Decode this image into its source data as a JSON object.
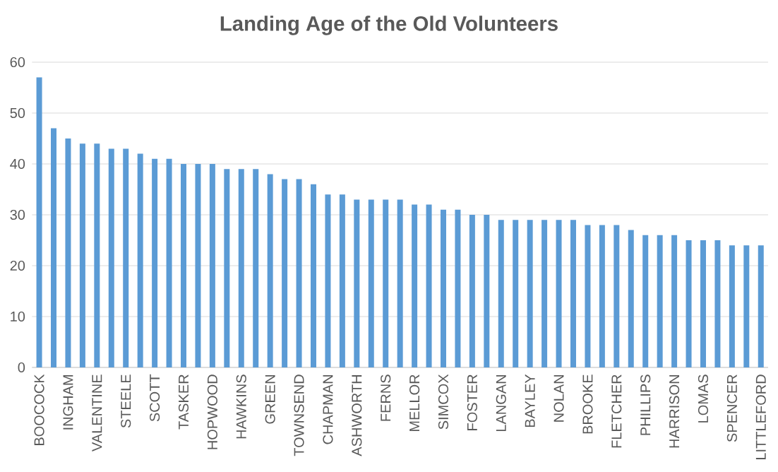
{
  "chart_data": {
    "type": "bar",
    "title": "Landing Age of the Old Volunteers",
    "categories": [
      "BOOCOCK",
      null,
      "INGHAM",
      null,
      "VALENTINE",
      null,
      "STEELE",
      null,
      "SCOTT",
      null,
      "TASKER",
      null,
      "HOPWOOD",
      null,
      "HAWKINS",
      null,
      "GREEN",
      null,
      "TOWNSEND",
      null,
      "CHAPMAN",
      null,
      "ASHWORTH",
      null,
      "FERNS",
      null,
      "MELLOR",
      null,
      "SIMCOX",
      null,
      "FOSTER",
      null,
      "LANGAN",
      null,
      "BAYLEY",
      null,
      "NOLAN",
      null,
      "BROOKE",
      null,
      "FLETCHER",
      null,
      "PHILLIPS",
      null,
      "HARRISON",
      null,
      "LOMAS",
      null,
      "SPENCER",
      null,
      "LITTLEFORD"
    ],
    "values": [
      57,
      47,
      45,
      44,
      44,
      43,
      43,
      42,
      41,
      41,
      40,
      40,
      40,
      39,
      39,
      39,
      38,
      37,
      37,
      36,
      34,
      34,
      33,
      33,
      33,
      33,
      32,
      32,
      31,
      31,
      30,
      30,
      29,
      29,
      29,
      29,
      29,
      29,
      28,
      28,
      28,
      27,
      26,
      26,
      26,
      25,
      25,
      25,
      24,
      24,
      24
    ],
    "color": "#5b9bd5",
    "ylim": [
      0,
      60
    ],
    "yticks": [
      0,
      10,
      20,
      30,
      40,
      50,
      60
    ],
    "grid": "y"
  }
}
